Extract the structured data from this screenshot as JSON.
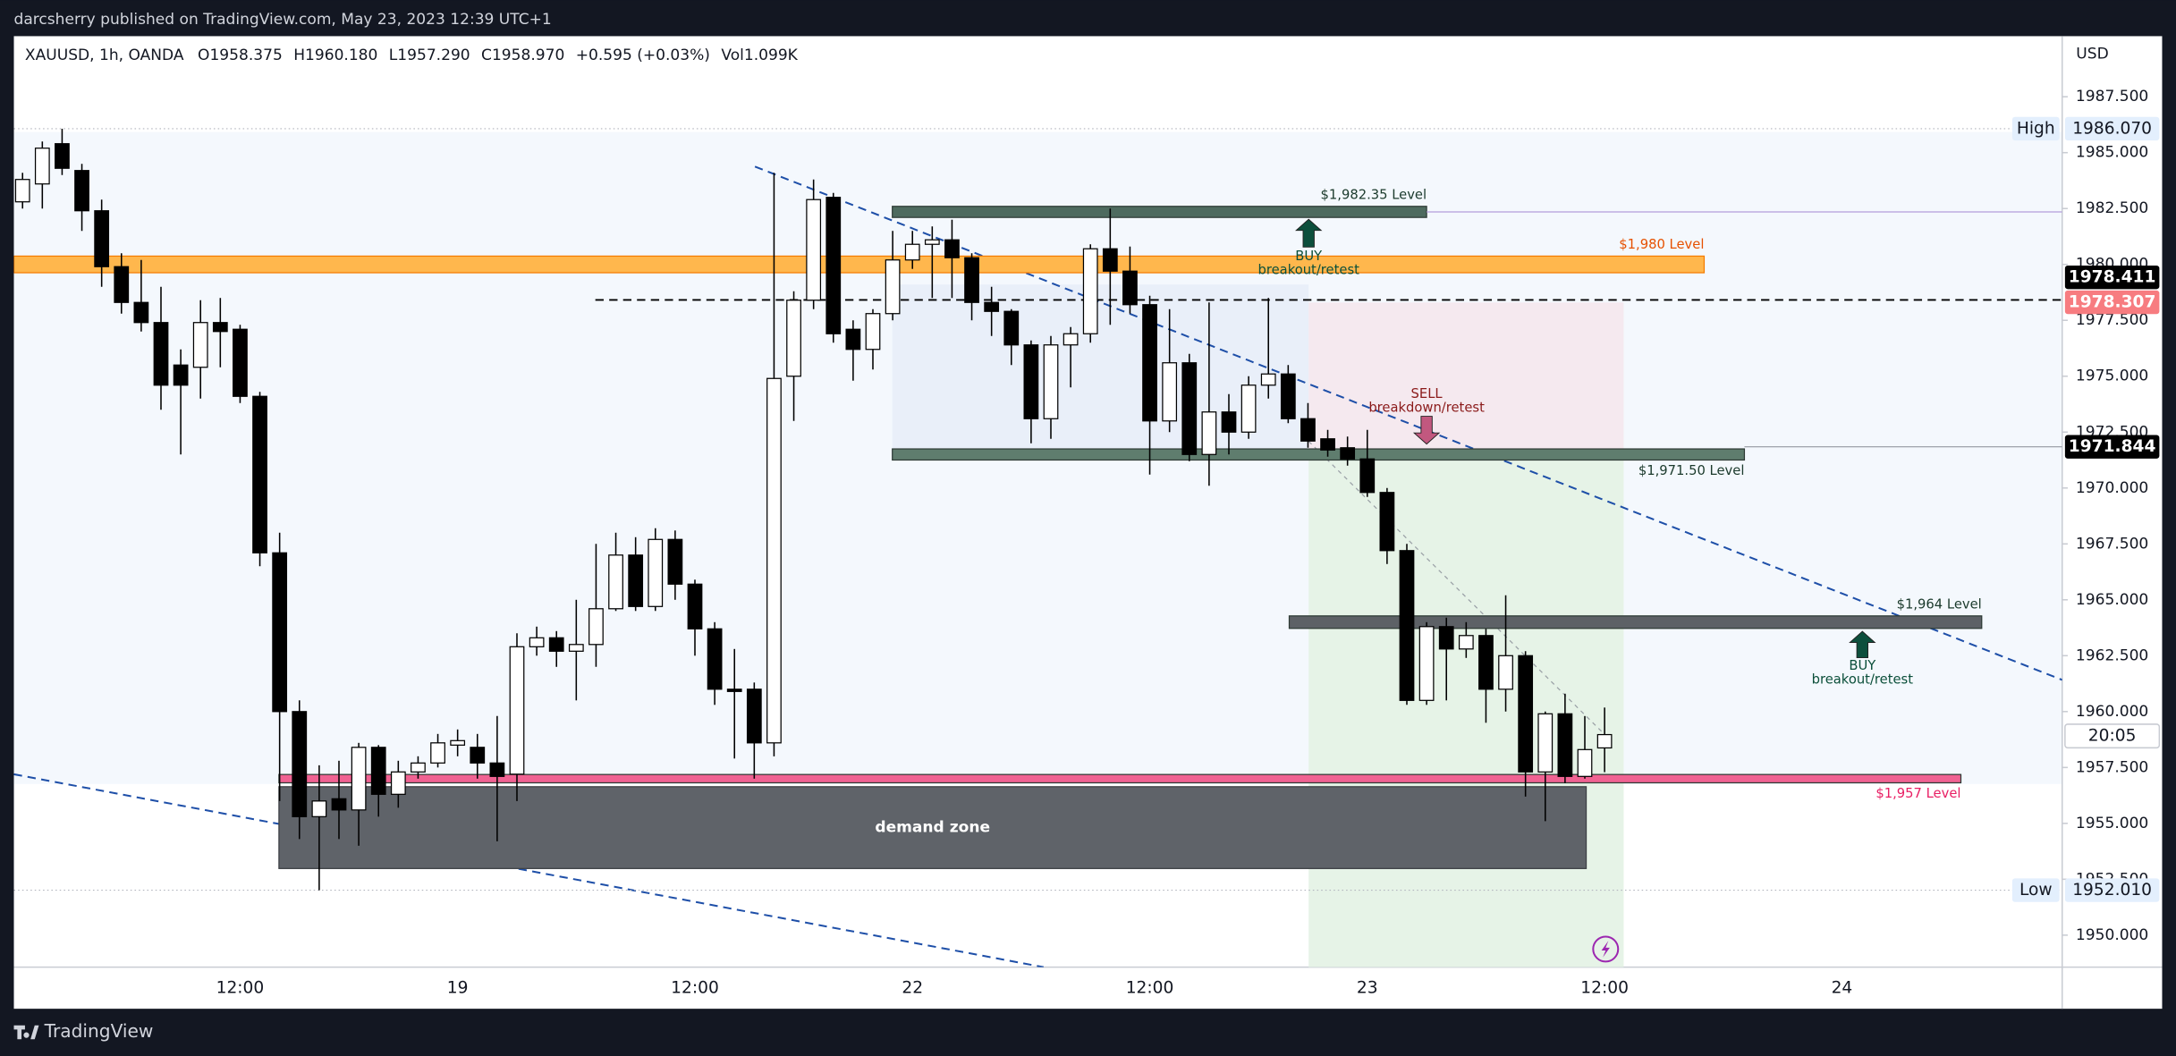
{
  "header": {
    "published": "darcsherry published on TradingView.com, May 23, 2023 12:39 UTC+1",
    "brand": "TradingView"
  },
  "chart_data": {
    "type": "candlestick",
    "title": "XAUUSD, 1h, OANDA",
    "ohlc_labels": [
      "O1958.375",
      "H1960.180",
      "L1957.290",
      "C1958.970",
      "+0.595 (+0.03%)",
      "Vol1.099K"
    ],
    "currency": "USD",
    "categories": [
      null,
      null,
      null,
      null,
      null,
      null,
      null,
      null,
      null,
      null,
      null,
      "12:00",
      null,
      null,
      null,
      null,
      null,
      null,
      null,
      null,
      null,
      null,
      "19",
      null,
      null,
      null,
      null,
      null,
      null,
      null,
      null,
      null,
      null,
      null,
      "12:00",
      null,
      null,
      null,
      null,
      null,
      null,
      null,
      null,
      null,
      null,
      "22",
      null,
      null,
      null,
      null,
      null,
      null,
      null,
      null,
      null,
      null,
      null,
      "12:00",
      null,
      null,
      null,
      null,
      null,
      null,
      null,
      null,
      null,
      null,
      "23",
      null,
      null,
      null,
      null,
      null,
      null,
      null,
      null,
      null,
      null,
      null,
      "12:00",
      null,
      null,
      null,
      null,
      null,
      null,
      null,
      null,
      null,
      null,
      null,
      "24",
      null,
      null,
      null,
      null,
      null,
      null,
      null,
      null,
      null,
      null,
      null
    ],
    "open": [
      1982.8,
      1983.6,
      1985.4,
      1984.2,
      1982.4,
      1979.9,
      1978.3,
      1977.4,
      1975.5,
      1975.4,
      1977.4,
      1977.1,
      1974.1,
      1967.1,
      1960.0,
      1955.3,
      1956.1,
      1955.6,
      1958.4,
      1956.3,
      1957.3,
      1957.7,
      1958.5,
      1958.4,
      1957.7,
      1957.2,
      1962.9,
      1963.3,
      1962.7,
      1963.0,
      1964.6,
      1967.0,
      1964.7,
      1967.7,
      1965.7,
      1963.7,
      1961.0,
      1961.0,
      1958.6,
      1975.0,
      1978.4,
      1983.0,
      1977.1,
      1976.2,
      1977.8,
      1980.2,
      1980.9,
      1981.1,
      1980.3,
      1978.3,
      1977.9,
      1976.4,
      1973.1,
      1976.4,
      1976.9,
      1980.7,
      1979.7,
      1978.2,
      1973.0,
      1975.6,
      1971.5,
      1973.4,
      1972.5,
      1974.6,
      1975.1,
      1973.1,
      1972.2,
      1971.8,
      1971.3,
      1969.8,
      1967.2,
      1960.5,
      1963.8,
      1962.8,
      1963.4,
      1961.0,
      1962.5,
      1957.3,
      1959.9,
      1957.1,
      1958.375,
      null,
      null,
      null,
      null,
      null,
      null,
      null,
      null,
      null,
      null,
      null,
      null,
      null,
      null,
      null,
      null,
      null,
      null,
      null,
      null,
      null,
      null,
      null
    ],
    "high": [
      1984.1,
      1985.5,
      1986.07,
      1984.5,
      1982.9,
      1980.5,
      1980.2,
      1979.0,
      1976.2,
      1978.4,
      1978.5,
      1977.3,
      1974.3,
      1968.0,
      1960.5,
      1957.6,
      1957.8,
      1958.6,
      1958.5,
      1957.8,
      1958.0,
      1959.0,
      1959.2,
      1959.0,
      1959.8,
      1963.5,
      1963.8,
      1963.6,
      1965.0,
      1967.5,
      1968.0,
      1967.8,
      1968.2,
      1968.1,
      1965.9,
      1964.0,
      1962.8,
      1961.3,
      1984.1,
      1978.8,
      1983.8,
      1983.2,
      1977.5,
      1978.0,
      1981.5,
      1981.5,
      1981.7,
      1982.0,
      1980.5,
      1979.0,
      1978.0,
      1976.6,
      1976.8,
      1977.2,
      1980.9,
      1982.5,
      1980.8,
      1978.6,
      1978.0,
      1976.0,
      1978.3,
      1974.2,
      1975.0,
      1978.5,
      1975.5,
      1973.8,
      1972.6,
      1972.3,
      1972.6,
      1970.0,
      1967.5,
      1964.0,
      1964.2,
      1964.0,
      1963.7,
      1965.2,
      1962.7,
      1960.0,
      1960.8,
      1959.8,
      1960.18,
      null,
      null,
      null,
      null,
      null,
      null,
      null,
      null,
      null,
      null,
      null,
      null,
      null,
      null,
      null,
      null,
      null,
      null,
      null,
      null,
      null,
      null,
      null
    ],
    "low": [
      1982.5,
      1982.5,
      1984.0,
      1981.5,
      1979.0,
      1977.8,
      1977.0,
      1973.5,
      1971.5,
      1974.0,
      1975.4,
      1973.8,
      1966.5,
      1956.0,
      1954.3,
      1952.01,
      1954.3,
      1954.0,
      1955.3,
      1955.7,
      1957.0,
      1957.5,
      1958.0,
      1957.0,
      1954.2,
      1956.0,
      1962.5,
      1962.0,
      1960.5,
      1962.0,
      1964.5,
      1964.5,
      1964.5,
      1965.0,
      1962.5,
      1960.3,
      1957.9,
      1957.0,
      1958.0,
      1973.0,
      1978.0,
      1976.5,
      1974.8,
      1975.3,
      1977.5,
      1979.8,
      1978.5,
      1978.5,
      1977.5,
      1976.8,
      1975.5,
      1972.0,
      1972.2,
      1974.5,
      1976.5,
      1977.3,
      1977.8,
      1970.6,
      1972.5,
      1971.2,
      1970.1,
      1971.5,
      1972.2,
      1974.0,
      1972.9,
      1971.8,
      1971.4,
      1971.0,
      1969.6,
      1966.6,
      1960.3,
      1960.3,
      1960.5,
      1962.4,
      1959.5,
      1960.0,
      1956.2,
      1955.1,
      1956.8,
      1957.0,
      1957.29,
      null,
      null,
      null,
      null,
      null,
      null,
      null,
      null,
      null,
      null,
      null,
      null,
      null,
      null,
      null,
      null,
      null,
      null,
      null,
      null,
      null,
      null,
      null
    ],
    "close": [
      1983.8,
      1985.2,
      1984.3,
      1982.4,
      1979.9,
      1978.3,
      1977.4,
      1974.6,
      1974.6,
      1977.4,
      1977.0,
      1974.1,
      1967.1,
      1960.0,
      1955.3,
      1956.0,
      1955.6,
      1958.4,
      1956.3,
      1957.3,
      1957.7,
      1958.6,
      1958.7,
      1957.7,
      1957.1,
      1962.9,
      1963.3,
      1962.7,
      1963.0,
      1964.6,
      1967.0,
      1964.7,
      1967.7,
      1965.7,
      1963.7,
      1961.0,
      1960.9,
      1958.6,
      1974.9,
      1978.4,
      1982.9,
      1976.9,
      1976.2,
      1977.8,
      1980.2,
      1980.9,
      1981.1,
      1980.3,
      1978.3,
      1977.9,
      1976.4,
      1973.1,
      1976.4,
      1976.9,
      1980.7,
      1979.7,
      1978.2,
      1973.0,
      1975.6,
      1971.5,
      1973.4,
      1972.5,
      1974.6,
      1975.1,
      1973.1,
      1972.1,
      1971.7,
      1971.3,
      1969.8,
      1967.2,
      1960.5,
      1963.8,
      1962.8,
      1963.4,
      1961.0,
      1962.5,
      1957.3,
      1959.9,
      1957.1,
      1958.3,
      1958.97,
      null,
      null,
      null,
      null,
      null,
      null,
      null,
      null,
      null,
      null,
      null,
      null,
      null,
      null,
      null,
      null,
      null,
      null,
      null,
      null,
      null,
      null,
      null
    ],
    "up_color": "#ffffff",
    "down_color": "#000000",
    "wick_color": "#000000",
    "ylim": [
      1948.57,
      1990.21
    ],
    "yticks": [
      {
        "value": 1950,
        "label": "1950.000"
      },
      {
        "value": 1952.5,
        "label": "1952.500"
      },
      {
        "value": 1955,
        "label": "1955.000"
      },
      {
        "value": 1957.5,
        "label": "1957.500"
      },
      {
        "value": 1960,
        "label": "1960.000"
      },
      {
        "value": 1962.5,
        "label": "1962.500"
      },
      {
        "value": 1965,
        "label": "1965.000"
      },
      {
        "value": 1967.5,
        "label": "1967.500"
      },
      {
        "value": 1970,
        "label": "1970.000"
      },
      {
        "value": 1972.5,
        "label": "1972.500"
      },
      {
        "value": 1975,
        "label": "1975.000"
      },
      {
        "value": 1977.5,
        "label": "1977.500"
      },
      {
        "value": 1980,
        "label": "1980.000"
      },
      {
        "value": 1982.5,
        "label": "1982.500"
      },
      {
        "value": 1985,
        "label": "1985.000"
      },
      {
        "value": 1987.5,
        "label": "1987.500"
      }
    ],
    "grid": false,
    "price_labels": [
      {
        "name": "High",
        "value": 1986.07,
        "label": "1986.070",
        "color": "#e3effd"
      },
      {
        "value": 1978.411,
        "label": "1978.411",
        "color": "#000000"
      },
      {
        "value": 1978.307,
        "label": "1978.307",
        "color": "#f77c80"
      },
      {
        "value": 1971.844,
        "label": "1971.844",
        "color": "#000000"
      },
      {
        "name": "Low",
        "value": 1952.01,
        "label": "1952.010",
        "color": "#e3effd"
      }
    ],
    "countdown": "20:05",
    "levels": [
      {
        "label": "$1,982.35 Level",
        "value": 1982.35,
        "color": "#4e6b5f",
        "text_color": "#1b3a2c"
      },
      {
        "label": "$1,980 Level",
        "value": 1980,
        "color": "#ffb74d",
        "text_color": "#e65100"
      },
      {
        "label": "$1,971.50 Level",
        "value": 1971.5,
        "color": "#5f7d6e",
        "text_color": "#1b3a2c"
      },
      {
        "label": "$1,964 Level",
        "value": 1964,
        "color": "#5d6166",
        "text_color": "#1b3a2c"
      },
      {
        "label": "$1,957 Level",
        "value": 1957,
        "color": "#f06292",
        "text_color": "#e91e63"
      }
    ],
    "zones": [
      {
        "label": "demand zone",
        "top": 1956.64,
        "bottom": 1952.98,
        "color": "#5f6369"
      }
    ],
    "signals": [
      {
        "text": "BUY",
        "subtext": "breakout/retest",
        "color": "#0b4f3a"
      },
      {
        "text": "SELL",
        "subtext": "breakdown/retest",
        "color": "#8b1a1a"
      },
      {
        "text": "BUY",
        "subtext": "breakout/retest",
        "color": "#0b4f3a"
      }
    ]
  }
}
